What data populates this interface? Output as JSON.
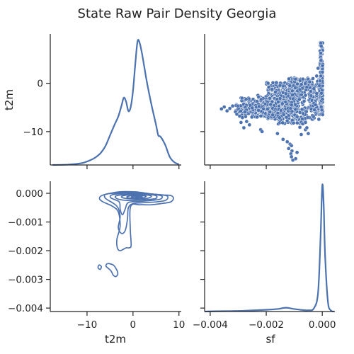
{
  "chart_data": {
    "type": "pairplot",
    "title": "State Raw Pair Density Georgia",
    "variables": [
      "t2m",
      "sf"
    ],
    "color": "#4c72b0",
    "grid": false,
    "xlabels": {
      "t2m": "t2m",
      "sf": "sf"
    },
    "ylabels": {
      "t2m": "t2m",
      "sf": ""
    },
    "t2m_ticks": [
      {
        "v": -10,
        "label": "−10"
      },
      {
        "v": 0,
        "label": "0"
      },
      {
        "v": 10,
        "label": "10"
      }
    ],
    "sf_ticks": [
      {
        "v": -0.004,
        "label": "−0.004"
      },
      {
        "v": -0.002,
        "label": "−0.002"
      },
      {
        "v": 0,
        "label": "0.000"
      }
    ],
    "t2m_ylim": [
      -16.9,
      10.2
    ],
    "t2m_xlim": [
      -18,
      10.5
    ],
    "sf_ylim": [
      -0.00412,
      0.00042
    ],
    "sf_xlim": [
      -0.0042,
      0.00045
    ],
    "sf_yticks": [
      {
        "v": 0,
        "label": "0.000"
      },
      {
        "v": -0.001,
        "label": "−0.001"
      },
      {
        "v": -0.002,
        "label": "−0.002"
      },
      {
        "v": -0.003,
        "label": "−0.003"
      },
      {
        "v": -0.004,
        "label": "−0.004"
      }
    ],
    "t2m_kde": {
      "x": [
        -17.5,
        -14,
        -11,
        -9,
        -8,
        -7,
        -6,
        -5,
        -4,
        -3.2,
        -2.5,
        -2,
        -1.5,
        -1,
        -0.5,
        0,
        0.5,
        1,
        1.5,
        2,
        2.5,
        3,
        4,
        5,
        5.5,
        6,
        7,
        8,
        9,
        10
      ],
      "density": [
        0.0,
        0.003,
        0.015,
        0.04,
        0.06,
        0.09,
        0.14,
        0.22,
        0.3,
        0.36,
        0.44,
        0.5,
        0.47,
        0.4,
        0.43,
        0.55,
        0.75,
        0.92,
        0.9,
        0.82,
        0.72,
        0.62,
        0.45,
        0.3,
        0.22,
        0.21,
        0.15,
        0.06,
        0.02,
        0.005
      ]
    },
    "sf_kde": {
      "x": [
        -0.0042,
        -0.0038,
        -0.0032,
        -0.0028,
        -0.0024,
        -0.002,
        -0.0016,
        -0.0013,
        -0.001,
        -0.0007,
        -0.0005,
        -0.0003,
        -0.00015,
        -6e-05,
        0,
        5e-05,
        0.0001,
        0.0002,
        0.0003,
        0.00042
      ],
      "density": [
        0.0,
        0.002,
        0.004,
        0.006,
        0.01,
        0.014,
        0.02,
        0.03,
        0.02,
        0.012,
        0.01,
        0.025,
        0.15,
        0.6,
        1.0,
        0.85,
        0.45,
        0.08,
        0.01,
        0.0
      ]
    },
    "scatter_points": [
      [
        -0.0011,
        -4.5
      ],
      [
        -0.0016,
        -10.4
      ],
      [
        -0.0014,
        -11.6
      ],
      [
        -0.00125,
        -12.1
      ],
      [
        -0.00115,
        -12.6
      ],
      [
        -0.0011,
        -12.9
      ],
      [
        -0.0012,
        -13.5
      ],
      [
        -0.00108,
        -14.0
      ],
      [
        -0.00112,
        -14.6
      ],
      [
        -0.0009,
        -14.3
      ],
      [
        -0.0011,
        -15.2
      ],
      [
        -0.00095,
        -15.6
      ],
      [
        -0.00105,
        -15.9
      ],
      [
        -0.0007,
        -8.4
      ],
      [
        -0.0006,
        -9.6
      ],
      [
        -0.0005,
        -10.4
      ],
      [
        -0.00055,
        -9.2
      ],
      [
        -0.0008,
        -9.1
      ],
      [
        -0.00075,
        -10.6
      ],
      [
        -0.0006,
        -8.1
      ],
      [
        -0.0025,
        -5.1
      ],
      [
        -0.0027,
        -7.9
      ],
      [
        -0.0026,
        -8.6
      ],
      [
        -0.0028,
        -9.2
      ],
      [
        -0.0029,
        -8.1
      ],
      [
        -0.0022,
        -9.6
      ],
      [
        -0.00215,
        -10.0
      ],
      [
        -0.0033,
        -5.2
      ],
      [
        -0.0034,
        -5.7
      ],
      [
        -0.0032,
        -4.7
      ],
      [
        -0.0035,
        -4.9
      ],
      [
        -0.0036,
        -5.3
      ],
      [
        -0.0031,
        -5.9
      ],
      [
        -0.00305,
        -6.4
      ],
      [
        -0.00295,
        -6.8
      ],
      [
        -0.00285,
        -7.1
      ],
      [
        -0.0002,
        1.5
      ],
      [
        -0.00015,
        3.1
      ],
      [
        -0.0001,
        -0.5
      ],
      [
        -0.0003,
        -1.1
      ],
      [
        -0.0002,
        -2.1
      ],
      [
        -0.00045,
        0.3
      ],
      [
        -0.00055,
        -0.8
      ],
      [
        -0.0004,
        -2.6
      ],
      [
        -0.0008,
        -1.3
      ]
    ],
    "scatter_clusters": [
      {
        "n": 260,
        "x": [
          -0.002,
          -0.0001
        ],
        "y": [
          -7.5,
          0.2
        ],
        "xpow": 0.8
      },
      {
        "n": 180,
        "x": [
          -0.0024,
          -0.0009
        ],
        "y": [
          -6.8,
          -2.5
        ],
        "xpow": 1
      },
      {
        "n": 160,
        "x": [
          -0.0017,
          -0.0001
        ],
        "y": [
          -6.0,
          0.3
        ],
        "xpow": 0.7
      },
      {
        "n": 120,
        "x": [
          -0.0029,
          -0.0015
        ],
        "y": [
          -7.0,
          -3.0
        ],
        "xpow": 1
      },
      {
        "n": 90,
        "x": [
          -0.0031,
          -0.0021
        ],
        "y": [
          -6.2,
          -4.3
        ],
        "xpow": 1
      },
      {
        "n": 140,
        "x": [
          -0.0012,
          -5e-05
        ],
        "y": [
          -2.5,
          1.2
        ],
        "xpow": 0.6
      },
      {
        "n": 70,
        "x": [
          -0.0016,
          -0.0006
        ],
        "y": [
          -8.5,
          -5.0
        ],
        "xpow": 1
      },
      {
        "n": 60,
        "x": [
          -0.0004,
          -2e-05
        ],
        "y": [
          -6.0,
          -2.5
        ],
        "xpow": 1
      }
    ],
    "scatter_edge": {
      "n": 140,
      "x": [
        -8e-05,
        2e-05
      ],
      "y": [
        -6.5,
        8.5
      ]
    },
    "kde2d_contours": [
      {
        "cx": 0.8,
        "cy": -0.00015,
        "ps": [
          [
            -6.5,
            -6e-05
          ],
          [
            -3,
            5e-05
          ],
          [
            0.5,
            5e-05
          ],
          [
            3,
            0.0
          ],
          [
            4.5,
            -3e-05
          ],
          [
            6.8,
            -6e-05
          ],
          [
            8.3,
            -8e-05
          ],
          [
            8.8,
            -0.00018
          ],
          [
            8.2,
            -0.0003
          ],
          [
            6.5,
            -0.00035
          ],
          [
            4,
            -0.0004
          ],
          [
            1.5,
            -0.0004
          ],
          [
            -0.5,
            -0.00045
          ],
          [
            -0.6,
            -0.0012
          ],
          [
            -0.4,
            -0.0018
          ],
          [
            -0.8,
            -0.0019
          ],
          [
            -1.5,
            -0.0019
          ],
          [
            -2.8,
            -0.002
          ],
          [
            -3.4,
            -0.0019
          ],
          [
            -3.5,
            -0.0016
          ],
          [
            -2.8,
            -0.00115
          ],
          [
            -3.2,
            -0.00065
          ],
          [
            -4.5,
            -0.00045
          ],
          [
            -6.5,
            -0.0003
          ],
          [
            -7.3,
            -0.00018
          ]
        ]
      },
      {
        "cx": 0.8,
        "cy": -0.00015,
        "ps": [
          [
            -5.8,
            -3e-05
          ],
          [
            -2.5,
            2e-05
          ],
          [
            0.5,
            2e-05
          ],
          [
            3,
            -1e-05
          ],
          [
            5,
            -4e-05
          ],
          [
            7.2,
            -8e-05
          ],
          [
            7.6,
            -0.00015
          ],
          [
            7,
            -0.00025
          ],
          [
            5,
            -0.0003
          ],
          [
            2,
            -0.00033
          ],
          [
            0,
            -0.00036
          ],
          [
            -1,
            -0.0005
          ],
          [
            -1.2,
            -0.0009
          ],
          [
            -1.7,
            -0.0013
          ],
          [
            -2.5,
            -0.0014
          ],
          [
            -3.2,
            -0.0012
          ],
          [
            -2.8,
            -0.0008
          ],
          [
            -3.5,
            -0.00045
          ],
          [
            -5.8,
            -0.0002
          ],
          [
            -6.2,
            -0.0001
          ]
        ]
      },
      {
        "cx": 0.8,
        "cy": -0.00015,
        "ps": [
          [
            -4.5,
            -5e-05
          ],
          [
            -1.5,
            0.0
          ],
          [
            1,
            0.0
          ],
          [
            3,
            -2e-05
          ],
          [
            5,
            -5e-05
          ],
          [
            6.3,
            -0.0001
          ],
          [
            6,
            -0.0002
          ],
          [
            4,
            -0.00025
          ],
          [
            1.5,
            -0.00028
          ],
          [
            -1,
            -0.00032
          ],
          [
            -1.7,
            -0.00055
          ],
          [
            -2.3,
            -0.00075
          ],
          [
            -2.8,
            -0.00055
          ],
          [
            -3,
            -0.0003
          ],
          [
            -4.8,
            -0.00016
          ]
        ]
      },
      {
        "cx": 0.8,
        "cy": -0.00015,
        "ps": [
          [
            -3.5,
            -8e-05
          ],
          [
            -1,
            -3e-05
          ],
          [
            1.5,
            -2e-05
          ],
          [
            3.5,
            -4e-05
          ],
          [
            5,
            -8e-05
          ],
          [
            5,
            -0.00018
          ],
          [
            3,
            -0.00022
          ],
          [
            1,
            -0.00024
          ],
          [
            -1,
            -0.00025
          ],
          [
            -2.8,
            -0.00022
          ],
          [
            -3.8,
            -0.00015
          ]
        ]
      },
      {
        "cx": 0.8,
        "cy": -0.00015,
        "ps": [
          [
            -2,
            -8e-05
          ],
          [
            0.5,
            -4e-05
          ],
          [
            2.5,
            -5e-05
          ],
          [
            4,
            -0.0001
          ],
          [
            3,
            -0.00018
          ],
          [
            0.8,
            -0.0002
          ],
          [
            -1.5,
            -0.00018
          ],
          [
            -2.5,
            -0.00013
          ]
        ]
      },
      {
        "cx": 0.8,
        "cy": -0.00015,
        "ps": [
          [
            -1,
            -0.0001
          ],
          [
            1,
            -7e-05
          ],
          [
            2.8,
            -0.0001
          ],
          [
            2.2,
            -0.00016
          ],
          [
            0.5,
            -0.00018
          ],
          [
            -1.2,
            -0.00015
          ]
        ]
      },
      {
        "cx": 0.8,
        "cy": -0.00015,
        "ps": [
          [
            0,
            -0.00011
          ],
          [
            1.5,
            -0.0001
          ],
          [
            2,
            -0.00013
          ],
          [
            1,
            -0.00016
          ],
          [
            -0.3,
            -0.00014
          ]
        ]
      },
      {
        "cx": 0.8,
        "cy": -0.00015,
        "ps": [
          [
            0.6,
            -0.00013
          ],
          [
            1.4,
            -0.00012
          ],
          [
            1.3,
            -0.00015
          ],
          [
            0.5,
            -0.00015
          ]
        ]
      },
      {
        "cx": 0,
        "cy": 0,
        "ps": [
          [
            -5.5,
            -0.00245
          ],
          [
            -4.3,
            -0.0025
          ],
          [
            -3.6,
            -0.00265
          ],
          [
            -3.3,
            -0.0028
          ],
          [
            -3.7,
            -0.0029
          ],
          [
            -4.3,
            -0.00285
          ],
          [
            -4.8,
            -0.0027
          ],
          [
            -5.5,
            -0.0026
          ],
          [
            -5.9,
            -0.00253
          ]
        ]
      },
      {
        "cx": 0,
        "cy": 0,
        "ps": [
          [
            -7.4,
            -0.0025
          ],
          [
            -6.9,
            -0.00255
          ],
          [
            -7.1,
            -0.00265
          ],
          [
            -7.6,
            -0.0026
          ]
        ]
      }
    ]
  }
}
